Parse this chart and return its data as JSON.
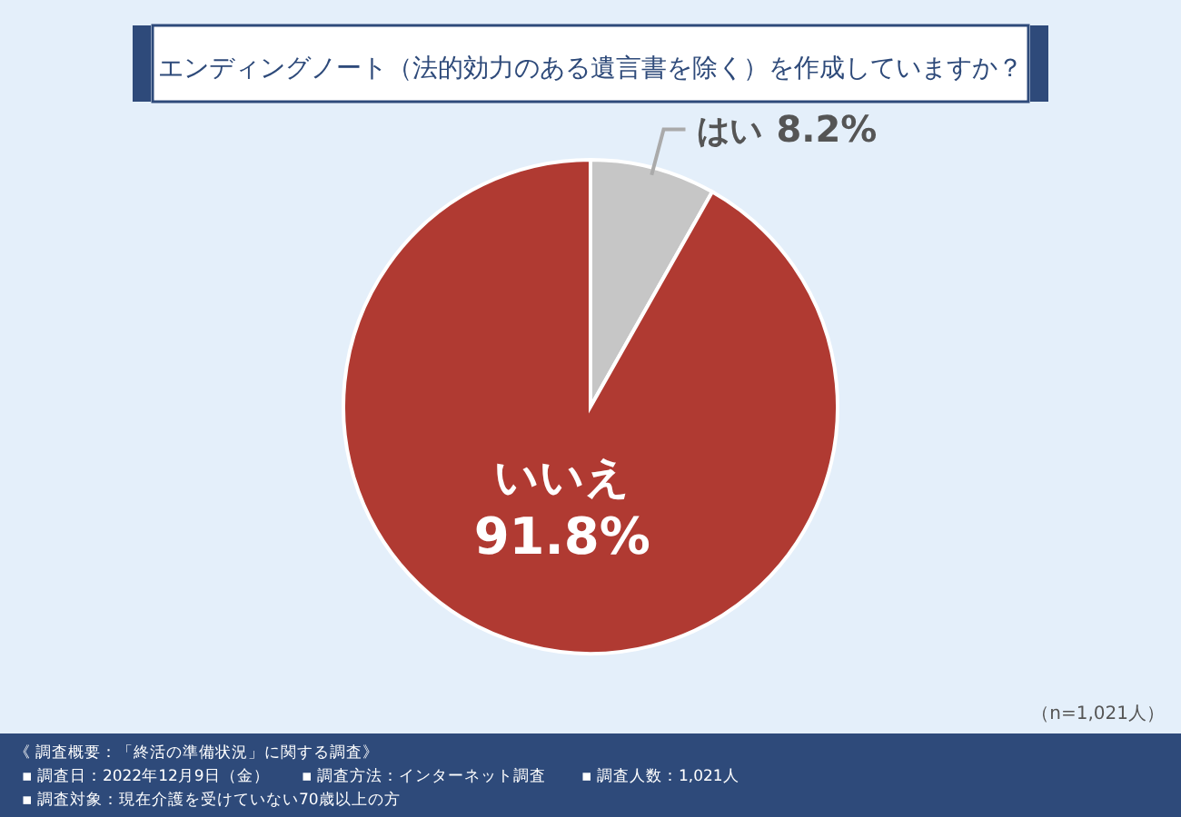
{
  "chart_data": {
    "type": "pie",
    "title": "エンディングノート（法的効力のある遺言書を除く）を作成していますか？",
    "categories": [
      "はい",
      "いいえ"
    ],
    "values": [
      8.2,
      91.8
    ],
    "colors": [
      "#c6c6c6",
      "#b03a32"
    ],
    "value_labels": [
      "8.2%",
      "91.8%"
    ],
    "annotations": [
      "（n=1,021人）",
      "《 調査概要：「終活の準備状況」に関する調査》",
      "▪ 調査日：2022年12月9日（金）",
      "▪ 調査方法：インターネット調査",
      "▪ 調査人数：1,021人",
      "▪ 調査対象：現在介護を受けていない70歳以上の方"
    ],
    "legend": false
  }
}
